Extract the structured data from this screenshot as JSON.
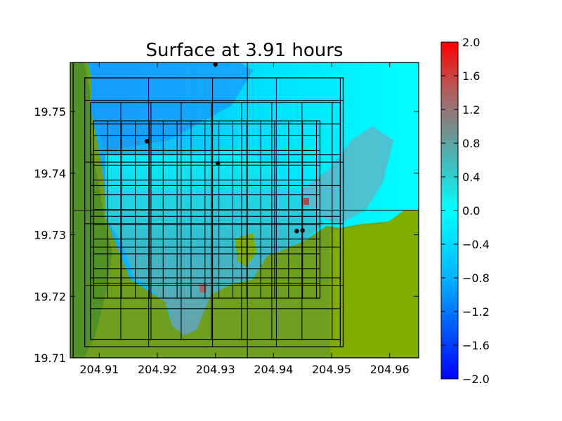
{
  "chart_data": {
    "type": "heatmap",
    "title": "Surface at 3.91 hours",
    "xlabel": "",
    "ylabel": "",
    "xlim": [
      204.905,
      204.965
    ],
    "ylim": [
      19.71,
      19.758
    ],
    "x_ticks": [
      "204.91",
      "204.92",
      "204.93",
      "204.94",
      "204.95",
      "204.96"
    ],
    "x_tick_values": [
      204.91,
      204.92,
      204.93,
      204.94,
      204.95,
      204.96
    ],
    "y_ticks": [
      "19.71",
      "19.72",
      "19.73",
      "19.74",
      "19.75"
    ],
    "y_tick_values": [
      19.71,
      19.72,
      19.73,
      19.74,
      19.75
    ],
    "colorbar": {
      "min": -2.0,
      "max": 2.0,
      "ticks": [
        "2.0",
        "1.6",
        "1.2",
        "0.8",
        "0.4",
        "0.0",
        "−0.4",
        "−0.8",
        "−1.2",
        "−1.6",
        "−2.0"
      ],
      "tick_values": [
        2.0,
        1.6,
        1.2,
        0.8,
        0.4,
        0.0,
        -0.4,
        -0.8,
        -1.2,
        -1.6,
        -2.0
      ],
      "colors": [
        "#0000ff",
        "#00b4ff",
        "#00ffff",
        "#5fa0a0",
        "#b06060",
        "#ff0000"
      ]
    },
    "land_color": "#7fad00",
    "land_color_dark": "#4e8e28",
    "gauges": [
      {
        "x": 204.93,
        "y": 19.7577
      },
      {
        "x": 204.9182,
        "y": 19.7452
      },
      {
        "x": 204.9304,
        "y": 19.7416
      },
      {
        "x": 204.944,
        "y": 19.7306
      },
      {
        "x": 204.945,
        "y": 19.7307
      }
    ],
    "grid_boxes": [
      {
        "x0": 204.9055,
        "x1": 204.965,
        "y0": 19.71,
        "y1": 19.758,
        "dx": 0.03,
        "dy": 0.024
      },
      {
        "x0": 204.9075,
        "x1": 204.952,
        "y0": 19.7118,
        "y1": 19.7555,
        "dx": 0.011,
        "dy": 0.01
      },
      {
        "x0": 204.9085,
        "x1": 204.9515,
        "y0": 19.713,
        "y1": 19.7515,
        "dx": 0.0052,
        "dy": 0.005
      },
      {
        "x0": 204.909,
        "x1": 204.948,
        "y0": 19.7197,
        "y1": 19.7485,
        "dx": 0.0024,
        "dy": 0.0024
      }
    ]
  }
}
